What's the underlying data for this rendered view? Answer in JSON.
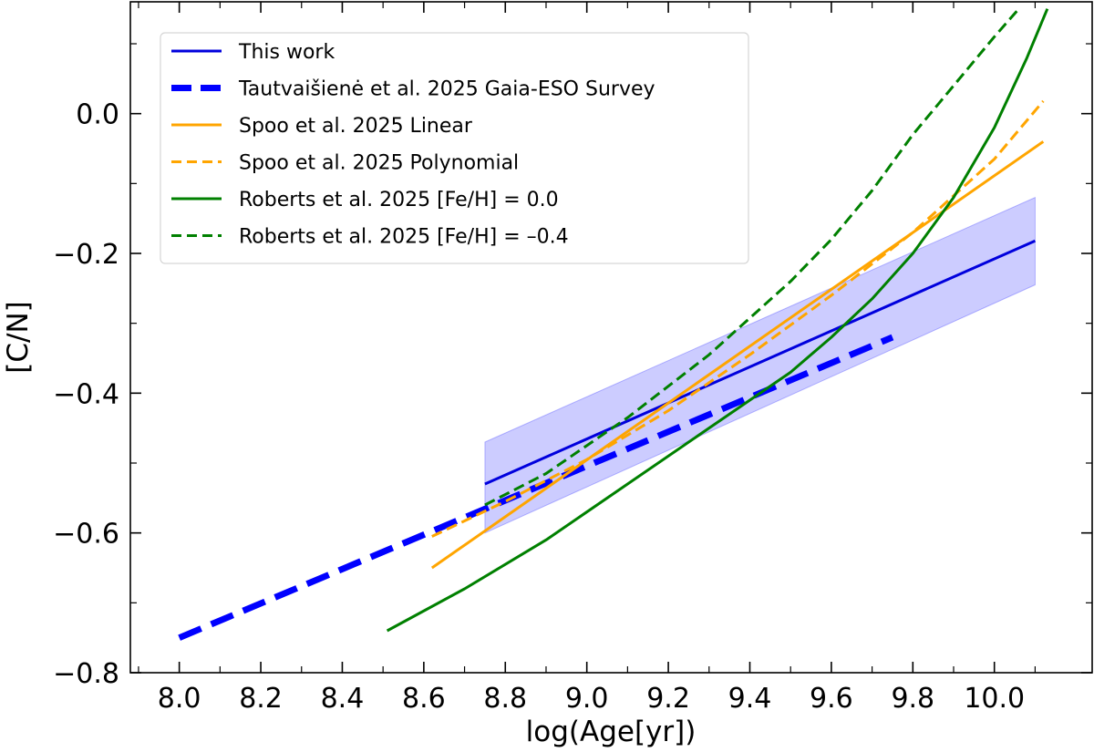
{
  "chart_data": {
    "type": "line",
    "title": "",
    "xlabel": "log(Age[yr])",
    "ylabel": "[C/N]",
    "xlim": [
      7.88,
      10.24
    ],
    "ylim": [
      -0.8,
      0.16
    ],
    "xticks": [
      8.0,
      8.2,
      8.4,
      8.6,
      8.8,
      9.0,
      9.2,
      9.4,
      9.6,
      9.8,
      10.0
    ],
    "xtick_labels": [
      "8.0",
      "8.2",
      "8.4",
      "8.6",
      "8.8",
      "9.0",
      "9.2",
      "9.4",
      "9.6",
      "9.8",
      "10.0"
    ],
    "yticks": [
      -0.8,
      -0.6,
      -0.4,
      -0.2,
      0.0
    ],
    "ytick_labels": [
      "−0.8",
      "−0.6",
      "−0.4",
      "−0.2",
      "0.0"
    ],
    "grid": false,
    "legend_position": "top-left",
    "band": {
      "name": "This work uncertainty",
      "color": "#0000ff",
      "x": [
        8.75,
        10.1
      ],
      "upper": [
        -0.47,
        -0.12
      ],
      "lower": [
        -0.6,
        -0.245
      ]
    },
    "series": [
      {
        "name": "This work",
        "color": "#0000dd",
        "style": "solid",
        "weight": "normal",
        "x": [
          8.75,
          10.1
        ],
        "y": [
          -0.53,
          -0.182
        ]
      },
      {
        "name": "Tautvaišienė et al. 2025 Gaia-ESO Survey",
        "color": "#0000ff",
        "style": "dashed",
        "weight": "bold",
        "x": [
          8.0,
          9.75
        ],
        "y": [
          -0.75,
          -0.32
        ]
      },
      {
        "name": "Spoo et al. 2025 Linear",
        "color": "#ffa500",
        "style": "solid",
        "weight": "normal",
        "x": [
          8.62,
          10.12
        ],
        "y": [
          -0.65,
          -0.04
        ]
      },
      {
        "name": "Spoo et al. 2025 Polynomial",
        "color": "#ffa500",
        "style": "dashed",
        "weight": "normal",
        "x": [
          8.62,
          8.8,
          9.0,
          9.2,
          9.4,
          9.6,
          9.8,
          10.0,
          10.12
        ],
        "y": [
          -0.605,
          -0.555,
          -0.495,
          -0.425,
          -0.345,
          -0.26,
          -0.17,
          -0.065,
          0.018
        ]
      },
      {
        "name": "Roberts et al. 2025 [Fe/H] = 0.0",
        "color": "#008000",
        "style": "solid",
        "weight": "normal",
        "x": [
          8.51,
          8.7,
          8.9,
          9.1,
          9.3,
          9.5,
          9.6,
          9.7,
          9.8,
          9.9,
          10.0,
          10.08,
          10.13
        ],
        "y": [
          -0.74,
          -0.68,
          -0.61,
          -0.53,
          -0.45,
          -0.37,
          -0.32,
          -0.265,
          -0.2,
          -0.12,
          -0.02,
          0.08,
          0.15
        ]
      },
      {
        "name": "Roberts et al. 2025 [Fe/H] = –0.4",
        "color": "#008000",
        "style": "dashed",
        "weight": "normal",
        "x": [
          8.75,
          8.9,
          9.1,
          9.3,
          9.5,
          9.6,
          9.7,
          9.8,
          9.9,
          10.0,
          10.06
        ],
        "y": [
          -0.56,
          -0.515,
          -0.435,
          -0.345,
          -0.24,
          -0.18,
          -0.11,
          -0.03,
          0.04,
          0.11,
          0.15
        ]
      }
    ]
  }
}
